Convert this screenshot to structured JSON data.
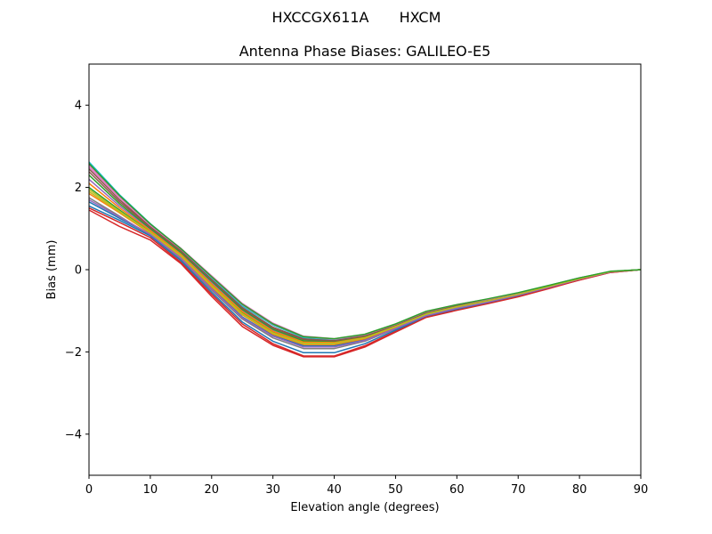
{
  "figure": {
    "suptitle_left": "HXCCGX611A",
    "suptitle_right": "HXCM"
  },
  "chart_data": {
    "type": "line",
    "title": "Antenna Phase Biases: GALILEO-E5",
    "xlabel": "Elevation angle (degrees)",
    "ylabel": "Bias (mm)",
    "xlim": [
      0,
      90
    ],
    "ylim": [
      -5,
      5
    ],
    "xticks": [
      0,
      10,
      20,
      30,
      40,
      50,
      60,
      70,
      80,
      90
    ],
    "yticks": [
      -4,
      -2,
      0,
      2,
      4
    ],
    "grid": false,
    "legend": "none",
    "x": [
      0,
      5,
      10,
      15,
      20,
      25,
      30,
      35,
      40,
      45,
      50,
      55,
      60,
      65,
      70,
      75,
      80,
      85,
      90
    ],
    "series": [
      {
        "color": "#1f77b4",
        "values": [
          1.65,
          1.25,
          0.85,
          0.3,
          -0.45,
          -1.15,
          -1.6,
          -1.85,
          -1.85,
          -1.7,
          -1.42,
          -1.12,
          -0.93,
          -0.78,
          -0.62,
          -0.43,
          -0.23,
          -0.06,
          0.0
        ]
      },
      {
        "color": "#ff7f0e",
        "values": [
          1.85,
          1.38,
          0.88,
          0.32,
          -0.42,
          -1.1,
          -1.57,
          -1.82,
          -1.82,
          -1.68,
          -1.4,
          -1.1,
          -0.92,
          -0.77,
          -0.61,
          -0.42,
          -0.22,
          -0.06,
          0.0
        ]
      },
      {
        "color": "#2ca02c",
        "values": [
          2.0,
          1.45,
          0.92,
          0.35,
          -0.38,
          -1.05,
          -1.52,
          -1.78,
          -1.78,
          -1.65,
          -1.38,
          -1.08,
          -0.9,
          -0.75,
          -0.6,
          -0.41,
          -0.22,
          -0.05,
          0.0
        ]
      },
      {
        "color": "#d62728",
        "values": [
          1.5,
          1.15,
          0.78,
          0.18,
          -0.6,
          -1.32,
          -1.8,
          -2.1,
          -2.1,
          -1.85,
          -1.5,
          -1.15,
          -0.98,
          -0.82,
          -0.65,
          -0.45,
          -0.25,
          -0.07,
          0.0
        ]
      },
      {
        "color": "#9467bd",
        "values": [
          2.2,
          1.55,
          0.98,
          0.4,
          -0.32,
          -1.0,
          -1.48,
          -1.75,
          -1.75,
          -1.62,
          -1.36,
          -1.05,
          -0.88,
          -0.74,
          -0.59,
          -0.4,
          -0.21,
          -0.05,
          0.0
        ]
      },
      {
        "color": "#8c564b",
        "values": [
          2.45,
          1.7,
          1.05,
          0.48,
          -0.22,
          -0.92,
          -1.4,
          -1.68,
          -1.72,
          -1.6,
          -1.35,
          -1.04,
          -0.87,
          -0.73,
          -0.58,
          -0.4,
          -0.21,
          -0.05,
          0.0
        ]
      },
      {
        "color": "#e377c2",
        "values": [
          2.55,
          1.78,
          1.1,
          0.52,
          -0.15,
          -0.82,
          -1.3,
          -1.62,
          -1.68,
          -1.58,
          -1.33,
          -1.02,
          -0.85,
          -0.72,
          -0.57,
          -0.39,
          -0.2,
          -0.05,
          0.0
        ]
      },
      {
        "color": "#7f7f7f",
        "values": [
          1.75,
          1.3,
          0.83,
          0.25,
          -0.5,
          -1.2,
          -1.66,
          -1.92,
          -1.92,
          -1.74,
          -1.44,
          -1.13,
          -0.95,
          -0.8,
          -0.63,
          -0.44,
          -0.24,
          -0.06,
          0.0
        ]
      },
      {
        "color": "#bcbd22",
        "values": [
          1.9,
          1.4,
          0.9,
          0.33,
          -0.4,
          -1.08,
          -1.55,
          -1.8,
          -1.8,
          -1.66,
          -1.39,
          -1.09,
          -0.91,
          -0.76,
          -0.6,
          -0.42,
          -0.22,
          -0.05,
          0.0
        ]
      },
      {
        "color": "#17becf",
        "values": [
          2.62,
          1.82,
          1.12,
          0.5,
          -0.2,
          -0.88,
          -1.35,
          -1.65,
          -1.7,
          -1.59,
          -1.34,
          -1.03,
          -0.86,
          -0.72,
          -0.57,
          -0.39,
          -0.2,
          -0.05,
          0.0
        ]
      },
      {
        "color": "#1f77b4",
        "values": [
          1.55,
          1.2,
          0.82,
          0.22,
          -0.55,
          -1.27,
          -1.74,
          -2.02,
          -2.02,
          -1.8,
          -1.47,
          -1.14,
          -0.96,
          -0.81,
          -0.64,
          -0.44,
          -0.24,
          -0.06,
          0.0
        ]
      },
      {
        "color": "#ff7f0e",
        "values": [
          2.1,
          1.5,
          0.95,
          0.37,
          -0.35,
          -1.02,
          -1.5,
          -1.76,
          -1.77,
          -1.64,
          -1.37,
          -1.06,
          -0.89,
          -0.75,
          -0.59,
          -0.41,
          -0.21,
          -0.05,
          0.0
        ]
      },
      {
        "color": "#2ca02c",
        "values": [
          2.3,
          1.6,
          1.0,
          0.42,
          -0.28,
          -0.97,
          -1.45,
          -1.73,
          -1.74,
          -1.62,
          -1.36,
          -1.05,
          -0.88,
          -0.74,
          -0.58,
          -0.4,
          -0.21,
          -0.05,
          0.0
        ]
      },
      {
        "color": "#d62728",
        "values": [
          1.45,
          1.05,
          0.72,
          0.15,
          -0.65,
          -1.38,
          -1.84,
          -2.12,
          -2.12,
          -1.88,
          -1.52,
          -1.16,
          -0.99,
          -0.83,
          -0.66,
          -0.46,
          -0.25,
          -0.07,
          0.0
        ]
      },
      {
        "color": "#9467bd",
        "values": [
          1.7,
          1.28,
          0.86,
          0.28,
          -0.47,
          -1.17,
          -1.62,
          -1.88,
          -1.88,
          -1.72,
          -1.43,
          -1.12,
          -0.94,
          -0.79,
          -0.62,
          -0.43,
          -0.23,
          -0.06,
          0.0
        ]
      },
      {
        "color": "#8c564b",
        "values": [
          2.38,
          1.65,
          1.03,
          0.45,
          -0.25,
          -0.94,
          -1.42,
          -1.7,
          -1.73,
          -1.61,
          -1.35,
          -1.04,
          -0.87,
          -0.73,
          -0.58,
          -0.4,
          -0.21,
          -0.05,
          0.0
        ]
      },
      {
        "color": "#e377c2",
        "values": [
          2.5,
          1.75,
          1.08,
          0.5,
          -0.18,
          -0.85,
          -1.33,
          -1.63,
          -1.69,
          -1.58,
          -1.33,
          -1.02,
          -0.85,
          -0.72,
          -0.57,
          -0.39,
          -0.2,
          -0.05,
          0.0
        ]
      },
      {
        "color": "#bcbd22",
        "values": [
          1.95,
          1.42,
          0.91,
          0.34,
          -0.39,
          -1.07,
          -1.54,
          -1.79,
          -1.79,
          -1.66,
          -1.38,
          -1.08,
          -0.9,
          -0.76,
          -0.6,
          -0.41,
          -0.22,
          -0.05,
          0.0
        ]
      },
      {
        "color": "#2ca02c",
        "values": [
          2.58,
          1.8,
          1.11,
          0.51,
          -0.17,
          -0.84,
          -1.32,
          -1.63,
          -1.68,
          -1.57,
          -1.32,
          -1.01,
          -0.85,
          -0.71,
          -0.56,
          -0.38,
          -0.2,
          -0.04,
          0.0
        ]
      }
    ]
  }
}
